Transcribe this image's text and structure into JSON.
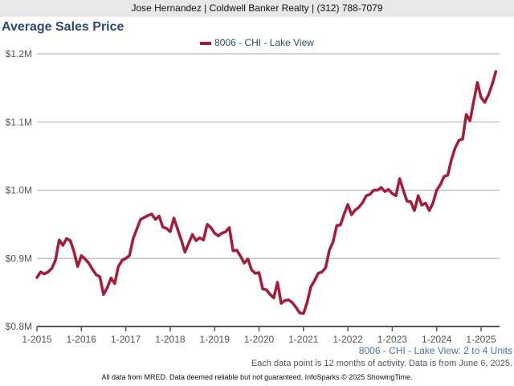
{
  "header": {
    "text": "Jose Hernandez | Coldwell Banker Realty | (312) 788-7079"
  },
  "colors": {
    "line": "#a51b38",
    "title": "#2b4a6f",
    "grid": "#b0b0b0"
  },
  "chart_data": {
    "type": "line",
    "title": "Average Sales Price",
    "legend": [
      "8006 - CHI - Lake View"
    ],
    "legend_position": "top-center",
    "subtitle": "8006 - CHI - Lake View: 2 to 4 Units",
    "note": "Each data point is 12 months of activity. Data is from June 6, 2025.",
    "footer": "All data from MRED. Data deemed reliable but not guaranteed. InfoSparks © 2025 ShowingTime.",
    "ylim": [
      0.8,
      1.2
    ],
    "y_ticks": [
      0.8,
      0.9,
      1.0,
      1.1,
      1.2
    ],
    "y_tick_labels": [
      "$0.8M",
      "$0.9M",
      "$1.0M",
      "$1.1M",
      "$1.2M"
    ],
    "x_tick_labels": [
      "1-2015",
      "1-2016",
      "1-2017",
      "1-2018",
      "1-2019",
      "1-2020",
      "1-2021",
      "1-2022",
      "1-2023",
      "1-2024",
      "1-2025"
    ],
    "x_start": "1-2015",
    "x_interval": "month",
    "grid": true,
    "series": [
      {
        "name": "8006 - CHI - Lake View",
        "unit": "$M",
        "values": [
          0.872,
          0.88,
          0.877,
          0.88,
          0.885,
          0.897,
          0.927,
          0.919,
          0.929,
          0.926,
          0.91,
          0.888,
          0.904,
          0.899,
          0.893,
          0.884,
          0.876,
          0.873,
          0.847,
          0.857,
          0.871,
          0.863,
          0.888,
          0.897,
          0.9,
          0.904,
          0.929,
          0.943,
          0.957,
          0.96,
          0.963,
          0.965,
          0.957,
          0.962,
          0.946,
          0.944,
          0.939,
          0.959,
          0.943,
          0.927,
          0.909,
          0.922,
          0.935,
          0.926,
          0.93,
          0.927,
          0.95,
          0.945,
          0.937,
          0.933,
          0.937,
          0.939,
          0.945,
          0.911,
          0.912,
          0.903,
          0.893,
          0.899,
          0.883,
          0.878,
          0.879,
          0.855,
          0.854,
          0.847,
          0.842,
          0.865,
          0.834,
          0.838,
          0.839,
          0.835,
          0.828,
          0.82,
          0.819,
          0.835,
          0.858,
          0.867,
          0.878,
          0.88,
          0.886,
          0.912,
          0.924,
          0.948,
          0.949,
          0.965,
          0.979,
          0.964,
          0.971,
          0.975,
          0.982,
          0.992,
          0.994,
          1.0,
          1.0,
          1.004,
          0.998,
          1.001,
          0.995,
          0.992,
          1.017,
          1.0,
          0.984,
          0.983,
          0.97,
          0.992,
          0.978,
          0.981,
          0.97,
          0.981,
          1.0,
          1.008,
          1.02,
          1.022,
          1.045,
          1.062,
          1.073,
          1.075,
          1.111,
          1.102,
          1.13,
          1.158,
          1.136,
          1.129,
          1.14,
          1.155,
          1.174
        ]
      }
    ]
  }
}
